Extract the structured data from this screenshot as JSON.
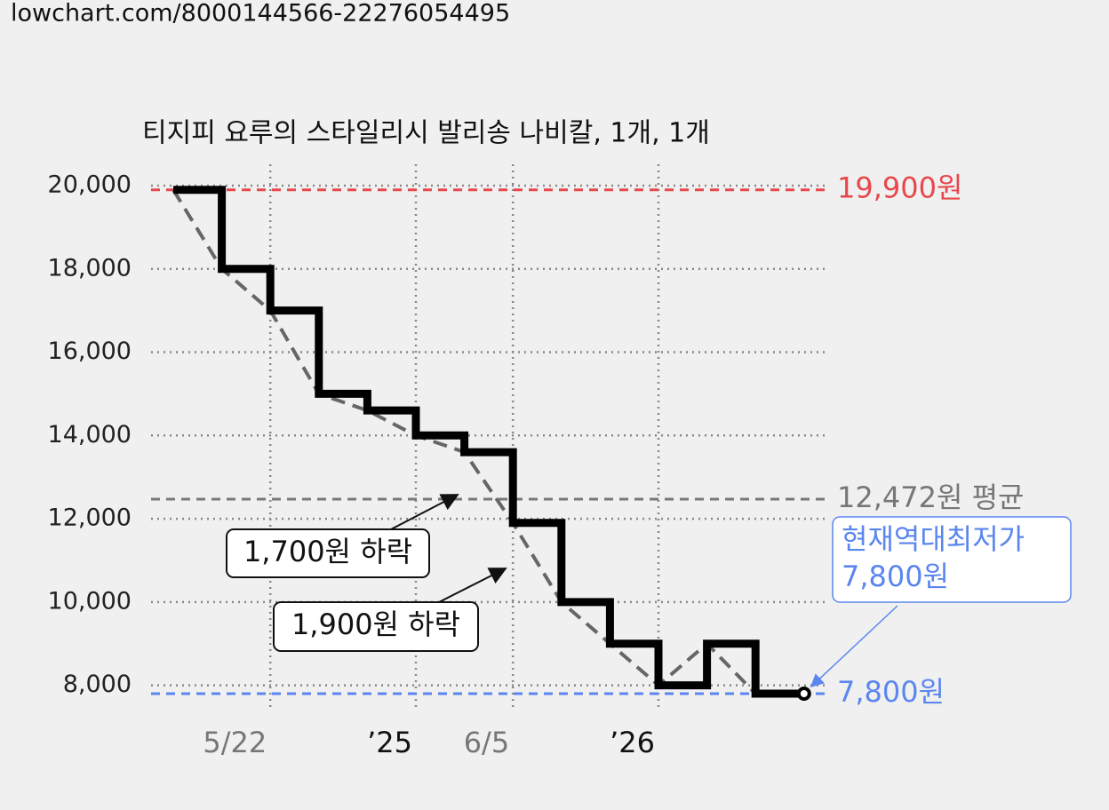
{
  "url": "lowchart.com/8000144566-22276054495",
  "chart_data": {
    "type": "step-line",
    "title": "티지피 요루의 스타일리시 발리송 나비칼, 1개, 1개",
    "categories": [
      null,
      null,
      "5/22",
      null,
      null,
      "’25",
      null,
      "6/5",
      null,
      null,
      "’26",
      null,
      null,
      null
    ],
    "series": [
      {
        "color": "#000000",
        "values": [
          19900,
          18000,
          17000,
          15000,
          14600,
          14000,
          13600,
          11900,
          10000,
          9000,
          8000,
          9000,
          7800,
          7800
        ]
      }
    ],
    "trend_color": "#666666",
    "ylim": [
      7800,
      20000
    ],
    "yticks": [
      {
        "value": 8000,
        "label": "8,000"
      },
      {
        "value": 10000,
        "label": "10,000"
      },
      {
        "value": 12000,
        "label": "12,000"
      },
      {
        "value": 14000,
        "label": "14,000"
      },
      {
        "value": 16000,
        "label": "16,000"
      },
      {
        "value": 18000,
        "label": "18,000"
      },
      {
        "value": 20000,
        "label": "20,000"
      }
    ],
    "grid": true,
    "ref_lines": [
      {
        "value": 19900,
        "label": "19,900원",
        "color": "#e8474c"
      },
      {
        "value": 12472,
        "label": "12,472원 평균",
        "color": "#777777"
      },
      {
        "value": 7800,
        "label": "7,800원",
        "color": "#5b86f0"
      }
    ],
    "annotations": [
      {
        "lines": [
          "1,700원 하락"
        ]
      },
      {
        "lines": [
          "1,900원 하락"
        ]
      },
      {
        "lines": [
          "현재역대최저가",
          "7,800원"
        ],
        "color": "#5b86f0"
      }
    ]
  }
}
